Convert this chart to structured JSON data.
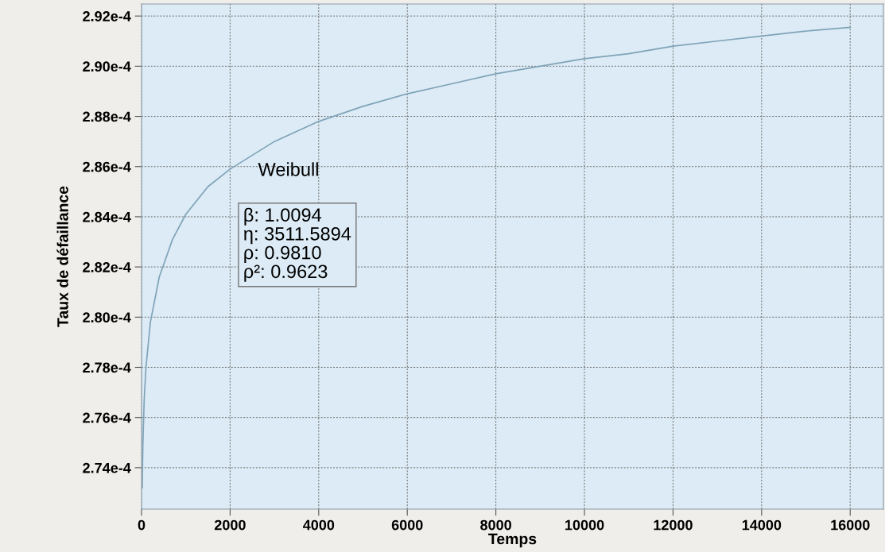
{
  "chart_data": {
    "type": "line",
    "xlabel": "Temps",
    "ylabel": "Taux de défaillance",
    "x": [
      16,
      30,
      60,
      100,
      200,
      400,
      700,
      1000,
      1500,
      2000,
      3000,
      4000,
      5000,
      6000,
      7000,
      8000,
      9000,
      10000,
      11000,
      12000,
      13000,
      14000,
      15000,
      16000
    ],
    "series": [
      {
        "color": "#7fa3b8",
        "values": [
          0.0002732,
          0.0002749,
          0.0002767,
          0.000278,
          0.0002798,
          0.0002816,
          0.0002831,
          0.0002841,
          0.0002852,
          0.0002859,
          0.000287,
          0.0002878,
          0.0002884,
          0.0002889,
          0.0002893,
          0.0002897,
          0.00029,
          0.0002903,
          0.0002905,
          0.0002908,
          0.000291,
          0.0002912,
          0.0002914,
          0.00029155
        ]
      }
    ],
    "xlim": [
      0,
      16750
    ],
    "ylim": [
      0.00027235,
      0.00029248
    ],
    "xticks": [
      0,
      2000,
      4000,
      6000,
      8000,
      10000,
      12000,
      14000,
      16000
    ],
    "yticks": [
      {
        "value": 0.000274,
        "label": "2.74e-4"
      },
      {
        "value": 0.000276,
        "label": "2.76e-4"
      },
      {
        "value": 0.000278,
        "label": "2.78e-4"
      },
      {
        "value": 0.00028,
        "label": "2.80e-4"
      },
      {
        "value": 0.000282,
        "label": "2.82e-4"
      },
      {
        "value": 0.000284,
        "label": "2.84e-4"
      },
      {
        "value": 0.000286,
        "label": "2.86e-4"
      },
      {
        "value": 0.000288,
        "label": "2.88e-4"
      },
      {
        "value": 0.00029,
        "label": "2.90e-4"
      },
      {
        "value": 0.000292,
        "label": "2.92e-4"
      }
    ],
    "grid": true,
    "marker": "none",
    "line_style": "solid",
    "annotations": [
      "Weibull",
      "β: 1.0094",
      "η: 3511.5894",
      "ρ: 0.9810",
      "ρ²: 0.9623"
    ]
  }
}
